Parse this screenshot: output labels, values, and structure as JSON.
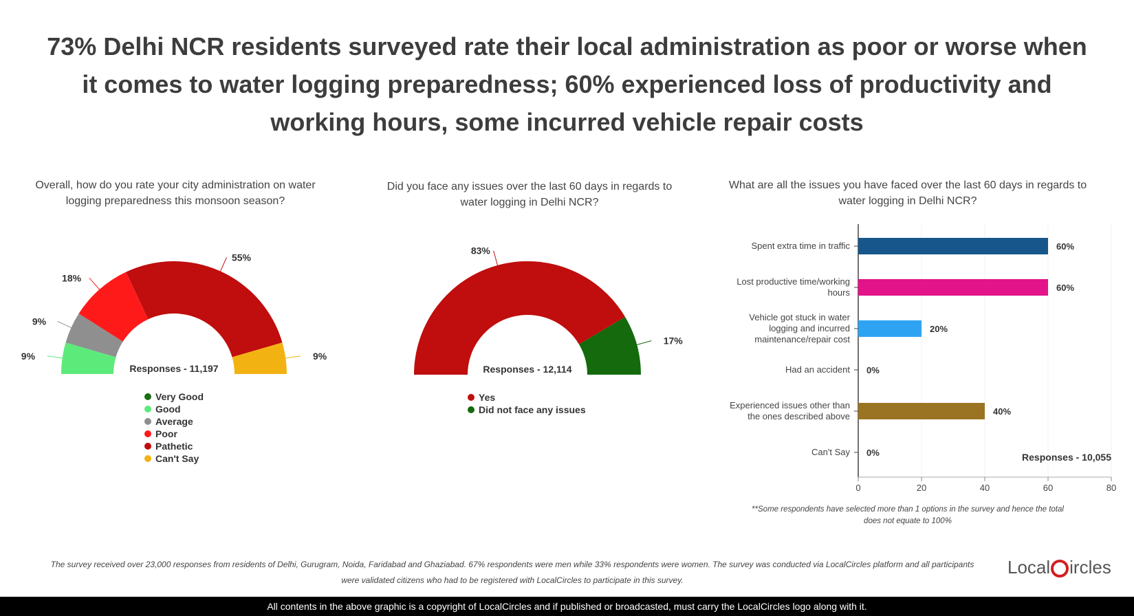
{
  "title": "73% Delhi NCR residents surveyed rate their local administration as poor or worse when it comes to water logging preparedness; 60% experienced loss of productivity and working hours, some incurred vehicle repair costs",
  "chart_data": [
    {
      "type": "pie",
      "title": "Overall, how do you rate your city administration on water logging preparedness this monsoon season?",
      "subtitle": "Responses - 11,197",
      "slices": [
        {
          "label": "Very Good",
          "value": 0,
          "color": "#1a6e14"
        },
        {
          "label": "Good",
          "value": 9,
          "color": "#5cea7a"
        },
        {
          "label": "Average",
          "value": 9,
          "color": "#8f8f8f"
        },
        {
          "label": "Poor",
          "value": 18,
          "color": "#ff1a1a"
        },
        {
          "label": "Pathetic",
          "value": 55,
          "color": "#c00d0d"
        },
        {
          "label": "Can't Say",
          "value": 9,
          "color": "#f2b312"
        }
      ],
      "data_labels": [
        "9%",
        "9%",
        "18%",
        "55%",
        "9%"
      ]
    },
    {
      "type": "pie",
      "title": "Did you face any issues over the last 60 days in regards to water logging in Delhi NCR?",
      "subtitle": "Responses - 12,114",
      "slices": [
        {
          "label": "Yes",
          "value": 83,
          "color": "#c00d0d"
        },
        {
          "label": "Did not face any issues",
          "value": 17,
          "color": "#146a0c"
        }
      ],
      "data_labels": [
        "83%",
        "17%"
      ]
    },
    {
      "type": "bar",
      "orientation": "horizontal",
      "title": "What are all the issues you have faced over the last 60 days in regards to water logging in Delhi NCR?",
      "subtitle": "Responses - 10,055",
      "categories": [
        [
          "Spent extra time in traffic"
        ],
        [
          "Lost productive time/working",
          "hours"
        ],
        [
          "Vehicle got stuck in water",
          "logging and incurred",
          "maintenance/repair cost"
        ],
        [
          "Had an accident"
        ],
        [
          "Experienced issues other than",
          "the ones described above"
        ],
        [
          "Can't Say"
        ]
      ],
      "values": [
        60,
        60,
        20,
        0,
        40,
        0
      ],
      "value_labels": [
        "60%",
        "60%",
        "20%",
        "0%",
        "40%",
        "0%"
      ],
      "colors": [
        "#17568a",
        "#e3138a",
        "#2ea3f2",
        "#2ea3f2",
        "#9a7422",
        "#2ea3f2"
      ],
      "xlim": [
        0,
        80
      ],
      "xticks": [
        0,
        20,
        40,
        60,
        80
      ]
    }
  ],
  "note": "**Some respondents have selected more than 1 options in the survey and hence the total does not equate to 100%",
  "footer_note": "The survey received over 23,000 responses from residents of Delhi, Gurugram, Noida, Faridabad and Ghaziabad. 67% respondents were men while 33% respondents were women. The survey was conducted via LocalCircles platform and all participants were validated citizens who had to be registered with LocalCircles to participate in this survey.",
  "logo": {
    "text_left": "Local",
    "text_right": "ircles"
  },
  "copyright": "All contents in the above graphic is a copyright of LocalCircles and if published or broadcasted, must carry the LocalCircles logo along with it."
}
